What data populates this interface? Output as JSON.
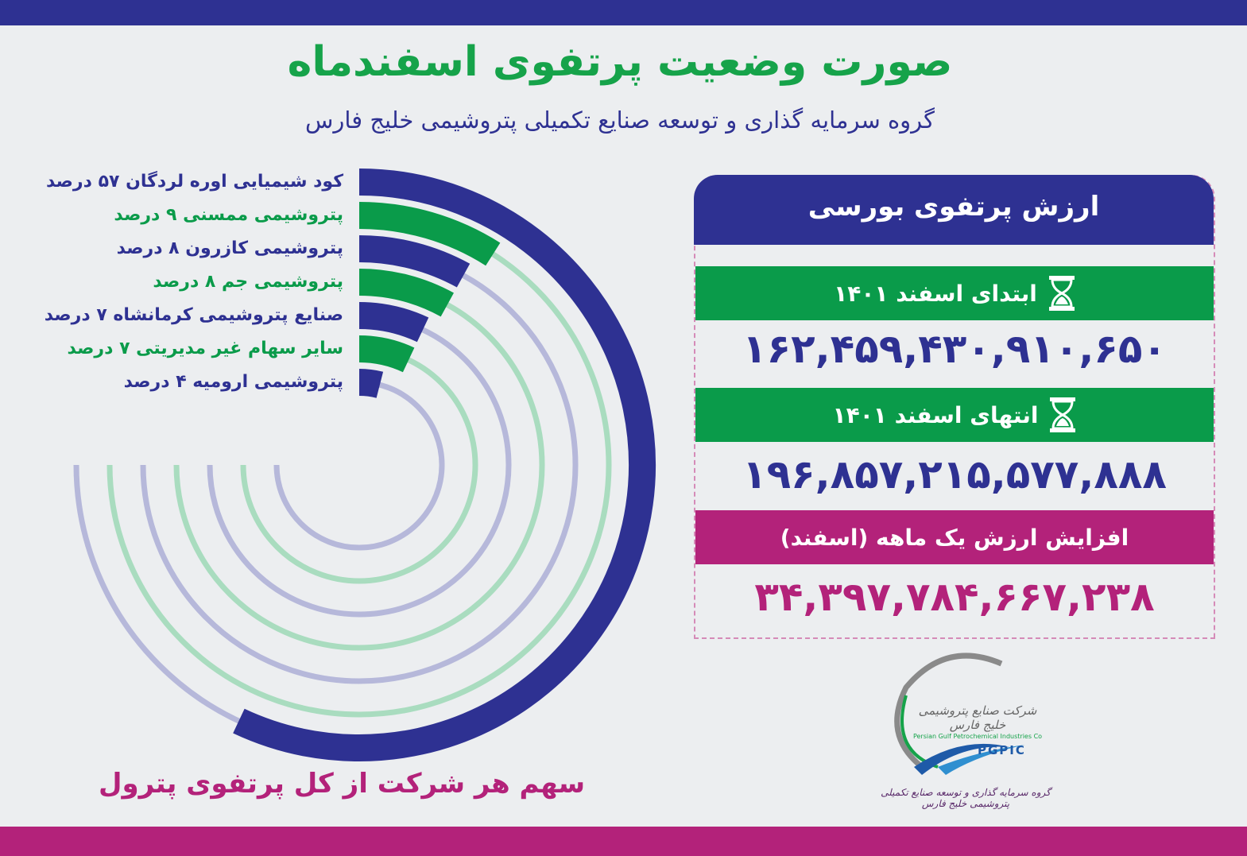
{
  "header": {
    "title": "صورت وضعیت پرتفوی اسفندماه",
    "subtitle": "گروه سرمایه گذاری و توسعه صنایع تکمیلی پتروشیمی خلیج فارس"
  },
  "chart_data": {
    "type": "radial-bar",
    "title": "سهم هر شرکت از کل پرتفوی پترول",
    "unit": "درصد",
    "categories": [
      "کود شیمیایی اوره لردگان",
      "پتروشیمی ممسنی",
      "پتروشیمی کازرون",
      "پتروشیمی جم",
      "صنایع پتروشیمی کرمانشاه",
      "سایر سهام غیر مدیریتی",
      "پتروشیمی ارومیه"
    ],
    "values": [
      57,
      9,
      8,
      8,
      7,
      7,
      4
    ],
    "labels": [
      "کود شیمیایی اوره لردگان ۵۷ درصد",
      "پتروشیمی ممسنی ۹ درصد",
      "پتروشیمی کازرون ۸ درصد",
      "پتروشیمی جم ۸ درصد",
      "صنایع پتروشیمی کرمانشاه ۷ درصد",
      "سایر سهام غیر مدیریتی ۷ درصد",
      "پتروشیمی ارومیه ۴ درصد"
    ],
    "colors": [
      "#2e3192",
      "#0a9b4a",
      "#2e3192",
      "#0a9b4a",
      "#2e3192",
      "#0a9b4a",
      "#2e3192"
    ],
    "track_colors": [
      "#b6b8da",
      "#a9dcbf",
      "#b6b8da",
      "#a9dcbf",
      "#b6b8da",
      "#a9dcbf",
      "#b6b8da"
    ]
  },
  "panel": {
    "title": "ارزش پرتفوی بورسی",
    "start_label": "ابتدای اسفند ۱۴۰۱",
    "start_value": "۱۶۲,۴۵۹,۴۳۰,۹۱۰,۶۵۰",
    "end_label": "انتهای اسفند ۱۴۰۱",
    "end_value": "۱۹۶,۸۵۷,۲۱۵,۵۷۷,۸۸۸",
    "increase_label": "افزایش ارزش یک ماهه (اسفند)",
    "increase_value": "۳۴,۳۹۷,۷۸۴,۶۶۷,۲۳۸",
    "icon": "hourglass-icon"
  },
  "logo": {
    "name_fa": "شرکت صنایع پتروشیمی خلیج فارس",
    "name_en": "Persian Gulf Petrochemical Industries Co",
    "abbr": "PGPIC",
    "tagline": "گروه سرمایه گذاری و توسعه صنایع تکمیلی پتروشیمی خلیج فارس"
  },
  "colors": {
    "navy": "#2e3192",
    "green": "#0a9b4a",
    "magenta": "#b3227a"
  }
}
